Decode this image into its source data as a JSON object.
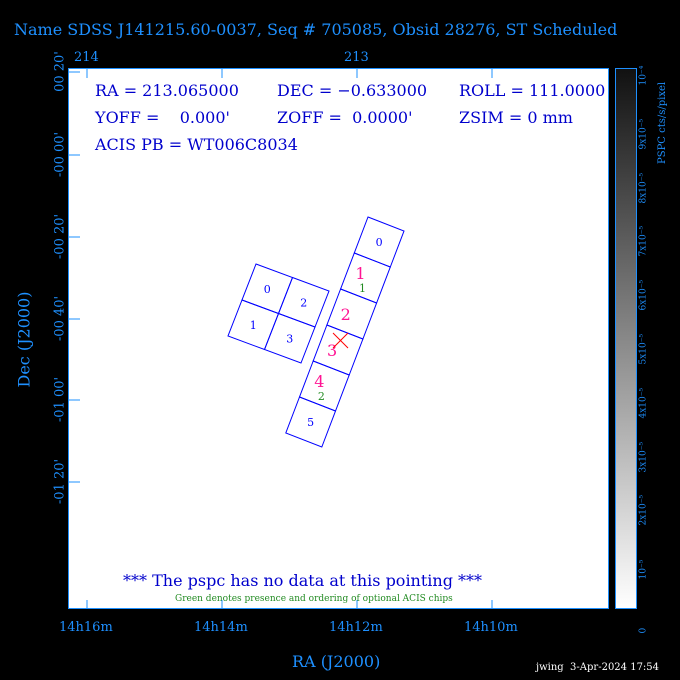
{
  "title": "Name SDSS J141215.60-0037, Seq # 705085, Obsid 28276, ST Scheduled",
  "top_axis_ticks": [
    "214",
    "213"
  ],
  "bottom_axis_ticks": [
    "14h16m",
    "14h14m",
    "14h12m",
    "14h10m"
  ],
  "x_label": "RA (J2000)",
  "y_label": "Dec (J2000)",
  "y_axis_ticks": [
    "00 20'",
    "-00 00'",
    "-00 20'",
    "-00 40'",
    "-01 00'",
    "-01 20'"
  ],
  "info": {
    "ra": "RA = 213.065000",
    "dec": "DEC = −0.633000",
    "roll": "ROLL = 111.0000",
    "yoff": "YOFF =    0.000'",
    "zoff": "ZOFF =  0.0000'",
    "zsim": "ZSIM = 0 mm",
    "pb": "ACIS PB = WT006C8034"
  },
  "no_data": "*** The pspc has no data at this pointing ***",
  "green_note": "Green denotes presence and ordering of optional ACIS chips",
  "colorbar": {
    "label": "PSPC cts/s/pixel",
    "ticks": [
      "10⁻⁴",
      "9x10⁻⁵",
      "8x10⁻⁵",
      "7x10⁻⁵",
      "6x10⁻⁵",
      "5x10⁻⁵",
      "4x10⁻⁵",
      "3x10⁻⁵",
      "2x10⁻⁵",
      "10⁻⁵",
      "0"
    ]
  },
  "i_array": [
    "0",
    "2",
    "1",
    "3"
  ],
  "s_array": [
    "0",
    "1",
    "2",
    "3",
    "4",
    "5"
  ],
  "required_chips": [
    "1",
    "2",
    "3",
    "4"
  ],
  "optional_chips": [
    "1",
    "2"
  ],
  "footer": "jwing  3-Apr-2024 17:54",
  "colors": {
    "axis": "#1e90ff",
    "chip": "#0000ff",
    "required": "#ff1493",
    "optional": "#228b22",
    "aimpoint": "#ff0000"
  }
}
